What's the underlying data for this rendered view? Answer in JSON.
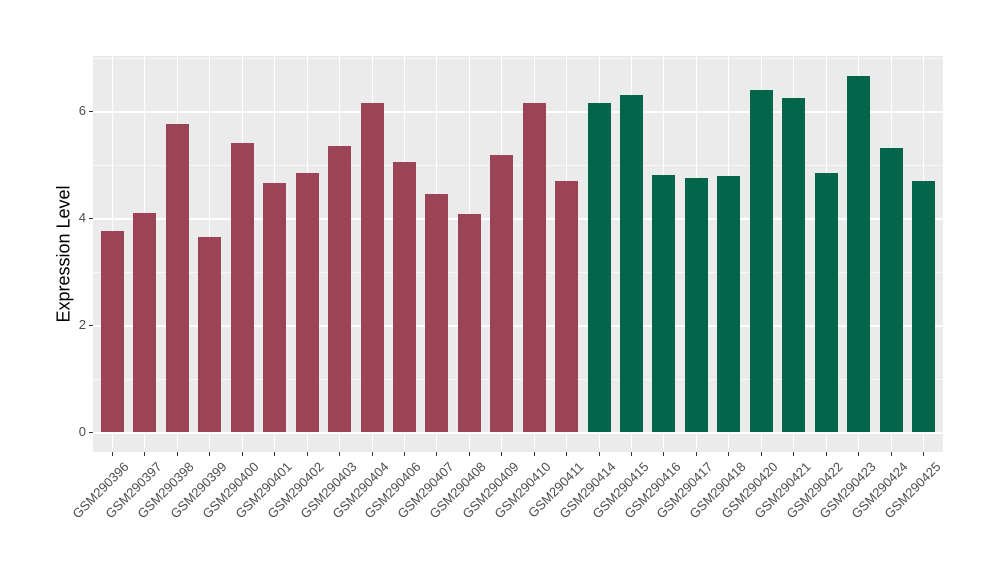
{
  "chart_data": {
    "type": "bar",
    "title": "",
    "xlabel": "",
    "ylabel": "Expression Level",
    "ylim": [
      0,
      7
    ],
    "yticks": [
      0,
      2,
      4,
      6
    ],
    "minor_gridlines_y": [
      1,
      3,
      5,
      7
    ],
    "grid": "on",
    "legend": "none",
    "categories": [
      "GSM290396",
      "GSM290397",
      "GSM290398",
      "GSM290399",
      "GSM290400",
      "GSM290401",
      "GSM290402",
      "GSM290403",
      "GSM290404",
      "GSM290406",
      "GSM290407",
      "GSM290408",
      "GSM290409",
      "GSM290410",
      "GSM290411",
      "GSM290414",
      "GSM290415",
      "GSM290416",
      "GSM290417",
      "GSM290418",
      "GSM290420",
      "GSM290421",
      "GSM290422",
      "GSM290423",
      "GSM290424",
      "GSM290425"
    ],
    "values": [
      3.75,
      4.1,
      5.75,
      3.65,
      5.4,
      4.65,
      4.85,
      5.35,
      6.15,
      5.05,
      4.45,
      4.08,
      5.18,
      6.15,
      4.7,
      6.15,
      6.3,
      4.8,
      4.75,
      4.78,
      6.4,
      6.25,
      4.85,
      6.65,
      5.3,
      4.7
    ],
    "groups": [
      "maroon",
      "maroon",
      "maroon",
      "maroon",
      "maroon",
      "maroon",
      "maroon",
      "maroon",
      "maroon",
      "maroon",
      "maroon",
      "maroon",
      "maroon",
      "maroon",
      "maroon",
      "green",
      "green",
      "green",
      "green",
      "green",
      "green",
      "green",
      "green",
      "green",
      "green",
      "green"
    ],
    "group_colors": {
      "maroon": "#9C4355",
      "green": "#03664A"
    },
    "colors": {
      "panel_bg": "#EBEBEB",
      "gridline": "#FFFFFF",
      "tick_text": "#4D4D4D",
      "axis_title": "#000000",
      "tick_mark": "#333333"
    }
  }
}
